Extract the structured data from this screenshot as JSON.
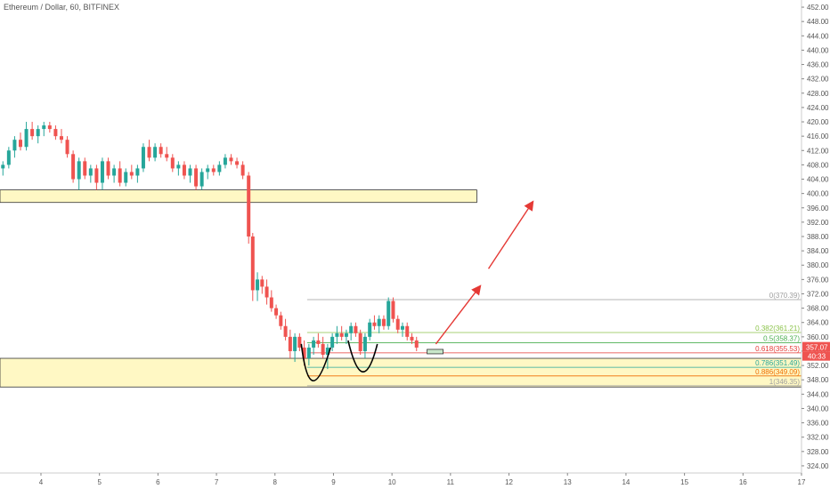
{
  "header": {
    "symbol_title": "Ethereum / Dollar, 60, BITFINEX"
  },
  "chart_data": {
    "type": "candlestick",
    "title": "Ethereum / Dollar, 60, BITFINEX",
    "ylim": [
      322,
      454
    ],
    "y_ticks": [
      "324.00",
      "328.00",
      "332.00",
      "336.00",
      "340.00",
      "344.00",
      "348.00",
      "352.00",
      "356.00",
      "360.00",
      "364.00",
      "368.00",
      "372.00",
      "376.00",
      "380.00",
      "384.00",
      "388.00",
      "392.00",
      "396.00",
      "400.00",
      "404.00",
      "408.00",
      "412.00",
      "416.00",
      "420.00",
      "424.00",
      "428.00",
      "432.00",
      "436.00",
      "440.00",
      "444.00",
      "448.00",
      "452.00"
    ],
    "x_ticks": [
      "4",
      "5",
      "6",
      "7",
      "8",
      "9",
      "10",
      "11",
      "12",
      "13",
      "14",
      "15",
      "16",
      "17"
    ],
    "x_tick_days": [
      4,
      5,
      6,
      7,
      8,
      9,
      10,
      11,
      12,
      13,
      14,
      15,
      16,
      17
    ],
    "xlim": [
      3.3,
      17.0
    ],
    "price_tags": {
      "last_price": "357.07",
      "countdown": "40:33"
    },
    "series": [
      {
        "name": "",
        "candles": [
          {
            "d": 3.35,
            "o": 407,
            "h": 409,
            "l": 405,
            "c": 408
          },
          {
            "d": 3.45,
            "o": 408,
            "h": 413,
            "l": 407,
            "c": 412
          },
          {
            "d": 3.55,
            "o": 412,
            "h": 416,
            "l": 410,
            "c": 415
          },
          {
            "d": 3.65,
            "o": 415,
            "h": 417,
            "l": 412,
            "c": 413
          },
          {
            "d": 3.75,
            "o": 413,
            "h": 420,
            "l": 412,
            "c": 418
          },
          {
            "d": 3.85,
            "o": 418,
            "h": 420,
            "l": 415,
            "c": 416
          },
          {
            "d": 3.95,
            "o": 416,
            "h": 419,
            "l": 414,
            "c": 418
          },
          {
            "d": 4.05,
            "o": 418,
            "h": 420,
            "l": 416,
            "c": 419
          },
          {
            "d": 4.15,
            "o": 419,
            "h": 420,
            "l": 417,
            "c": 418
          },
          {
            "d": 4.25,
            "o": 418,
            "h": 419,
            "l": 415,
            "c": 416
          },
          {
            "d": 4.35,
            "o": 416,
            "h": 418,
            "l": 414,
            "c": 415
          },
          {
            "d": 4.45,
            "o": 415,
            "h": 416,
            "l": 410,
            "c": 411
          },
          {
            "d": 4.55,
            "o": 411,
            "h": 412,
            "l": 403,
            "c": 404
          },
          {
            "d": 4.65,
            "o": 404,
            "h": 410,
            "l": 401,
            "c": 409
          },
          {
            "d": 4.75,
            "o": 409,
            "h": 410,
            "l": 404,
            "c": 405
          },
          {
            "d": 4.85,
            "o": 405,
            "h": 408,
            "l": 403,
            "c": 407
          },
          {
            "d": 4.95,
            "o": 407,
            "h": 408,
            "l": 401,
            "c": 403
          },
          {
            "d": 5.05,
            "o": 403,
            "h": 410,
            "l": 401,
            "c": 409
          },
          {
            "d": 5.15,
            "o": 409,
            "h": 410,
            "l": 404,
            "c": 405
          },
          {
            "d": 5.25,
            "o": 405,
            "h": 408,
            "l": 403,
            "c": 407
          },
          {
            "d": 5.35,
            "o": 407,
            "h": 409,
            "l": 402,
            "c": 403
          },
          {
            "d": 5.45,
            "o": 403,
            "h": 407,
            "l": 402,
            "c": 406
          },
          {
            "d": 5.55,
            "o": 406,
            "h": 408,
            "l": 404,
            "c": 405
          },
          {
            "d": 5.65,
            "o": 405,
            "h": 408,
            "l": 403,
            "c": 407
          },
          {
            "d": 5.75,
            "o": 407,
            "h": 414,
            "l": 406,
            "c": 413
          },
          {
            "d": 5.85,
            "o": 413,
            "h": 415,
            "l": 409,
            "c": 410
          },
          {
            "d": 5.95,
            "o": 410,
            "h": 414,
            "l": 409,
            "c": 413
          },
          {
            "d": 6.05,
            "o": 413,
            "h": 414,
            "l": 410,
            "c": 411
          },
          {
            "d": 6.15,
            "o": 411,
            "h": 413,
            "l": 409,
            "c": 410
          },
          {
            "d": 6.25,
            "o": 410,
            "h": 411,
            "l": 406,
            "c": 407
          },
          {
            "d": 6.35,
            "o": 407,
            "h": 409,
            "l": 405,
            "c": 408
          },
          {
            "d": 6.45,
            "o": 408,
            "h": 409,
            "l": 404,
            "c": 405
          },
          {
            "d": 6.55,
            "o": 405,
            "h": 408,
            "l": 403,
            "c": 407
          },
          {
            "d": 6.65,
            "o": 407,
            "h": 408,
            "l": 401,
            "c": 402
          },
          {
            "d": 6.75,
            "o": 402,
            "h": 407,
            "l": 401,
            "c": 406
          },
          {
            "d": 6.85,
            "o": 406,
            "h": 408,
            "l": 404,
            "c": 407
          },
          {
            "d": 6.95,
            "o": 407,
            "h": 408,
            "l": 405,
            "c": 406
          },
          {
            "d": 7.05,
            "o": 406,
            "h": 409,
            "l": 405,
            "c": 408
          },
          {
            "d": 7.15,
            "o": 408,
            "h": 411,
            "l": 407,
            "c": 410
          },
          {
            "d": 7.25,
            "o": 410,
            "h": 411,
            "l": 408,
            "c": 409
          },
          {
            "d": 7.35,
            "o": 409,
            "h": 410,
            "l": 407,
            "c": 408
          },
          {
            "d": 7.45,
            "o": 408,
            "h": 409,
            "l": 404,
            "c": 405
          },
          {
            "d": 7.55,
            "o": 405,
            "h": 406,
            "l": 386,
            "c": 388
          },
          {
            "d": 7.62,
            "o": 388,
            "h": 389,
            "l": 370,
            "c": 373
          },
          {
            "d": 7.7,
            "o": 373,
            "h": 378,
            "l": 370,
            "c": 376
          },
          {
            "d": 7.78,
            "o": 376,
            "h": 377,
            "l": 372,
            "c": 374
          },
          {
            "d": 7.86,
            "o": 374,
            "h": 376,
            "l": 369,
            "c": 371
          },
          {
            "d": 7.94,
            "o": 371,
            "h": 373,
            "l": 367,
            "c": 368
          },
          {
            "d": 8.02,
            "o": 368,
            "h": 369,
            "l": 365,
            "c": 366
          },
          {
            "d": 8.1,
            "o": 366,
            "h": 367,
            "l": 362,
            "c": 363
          },
          {
            "d": 8.18,
            "o": 363,
            "h": 365,
            "l": 359,
            "c": 360
          },
          {
            "d": 8.26,
            "o": 360,
            "h": 362,
            "l": 354,
            "c": 356
          },
          {
            "d": 8.34,
            "o": 356,
            "h": 361,
            "l": 353,
            "c": 360
          },
          {
            "d": 8.42,
            "o": 360,
            "h": 361,
            "l": 356,
            "c": 357
          },
          {
            "d": 8.5,
            "o": 357,
            "h": 359,
            "l": 352,
            "c": 354
          },
          {
            "d": 8.58,
            "o": 354,
            "h": 358,
            "l": 352,
            "c": 357
          },
          {
            "d": 8.66,
            "o": 357,
            "h": 360,
            "l": 355,
            "c": 359
          },
          {
            "d": 8.74,
            "o": 359,
            "h": 361,
            "l": 357,
            "c": 358
          },
          {
            "d": 8.82,
            "o": 358,
            "h": 360,
            "l": 354,
            "c": 355
          },
          {
            "d": 8.9,
            "o": 355,
            "h": 358,
            "l": 351,
            "c": 357
          },
          {
            "d": 8.98,
            "o": 357,
            "h": 361,
            "l": 356,
            "c": 360
          },
          {
            "d": 9.06,
            "o": 360,
            "h": 363,
            "l": 358,
            "c": 361
          },
          {
            "d": 9.14,
            "o": 361,
            "h": 363,
            "l": 359,
            "c": 360
          },
          {
            "d": 9.22,
            "o": 360,
            "h": 362,
            "l": 358,
            "c": 361
          },
          {
            "d": 9.3,
            "o": 361,
            "h": 364,
            "l": 359,
            "c": 363
          },
          {
            "d": 9.38,
            "o": 363,
            "h": 364,
            "l": 360,
            "c": 361
          },
          {
            "d": 9.46,
            "o": 361,
            "h": 362,
            "l": 355,
            "c": 356
          },
          {
            "d": 9.54,
            "o": 356,
            "h": 361,
            "l": 354,
            "c": 360
          },
          {
            "d": 9.62,
            "o": 360,
            "h": 365,
            "l": 359,
            "c": 364
          },
          {
            "d": 9.7,
            "o": 364,
            "h": 366,
            "l": 362,
            "c": 363
          },
          {
            "d": 9.78,
            "o": 363,
            "h": 366,
            "l": 361,
            "c": 365
          },
          {
            "d": 9.86,
            "o": 365,
            "h": 366,
            "l": 362,
            "c": 363
          },
          {
            "d": 9.94,
            "o": 363,
            "h": 371,
            "l": 362,
            "c": 370
          },
          {
            "d": 10.02,
            "o": 370,
            "h": 371,
            "l": 364,
            "c": 365
          },
          {
            "d": 10.1,
            "o": 365,
            "h": 366,
            "l": 361,
            "c": 362
          },
          {
            "d": 10.18,
            "o": 362,
            "h": 364,
            "l": 360,
            "c": 363
          },
          {
            "d": 10.26,
            "o": 363,
            "h": 364,
            "l": 359,
            "c": 360
          },
          {
            "d": 10.34,
            "o": 360,
            "h": 361,
            "l": 358,
            "c": 359
          },
          {
            "d": 10.42,
            "o": 359,
            "h": 360,
            "l": 356,
            "c": 357
          }
        ]
      }
    ],
    "fibonacci": [
      {
        "label": "0(370.39)",
        "value": 370.39,
        "color": "#9e9e9e"
      },
      {
        "label": "0.382(361.21)",
        "value": 361.21,
        "color": "#8bc34a"
      },
      {
        "label": "0.5(358.37)",
        "value": 358.37,
        "color": "#4caf50"
      },
      {
        "label": "0.618(355.53)",
        "value": 355.53,
        "color": "#e53935"
      },
      {
        "label": "0.786(351.49)",
        "value": 351.49,
        "color": "#26a69a"
      },
      {
        "label": "0.886(349.09)",
        "value": 349.09,
        "color": "#ef6c00"
      },
      {
        "label": "1(346.35)",
        "value": 346.35,
        "color": "#9e9e9e"
      }
    ],
    "zones": [
      {
        "from": 397.5,
        "to": 401.0,
        "x_from": 3.3,
        "x_to": 11.45
      },
      {
        "from": 346.0,
        "to": 354.0,
        "x_from": 3.3,
        "x_to": 17.0
      }
    ],
    "colors": {
      "up": "#26a69a",
      "down": "#ef5350",
      "zone_fill": "#fff8c4",
      "arrow": "#e53935",
      "price_tag": "#ef5350"
    }
  }
}
